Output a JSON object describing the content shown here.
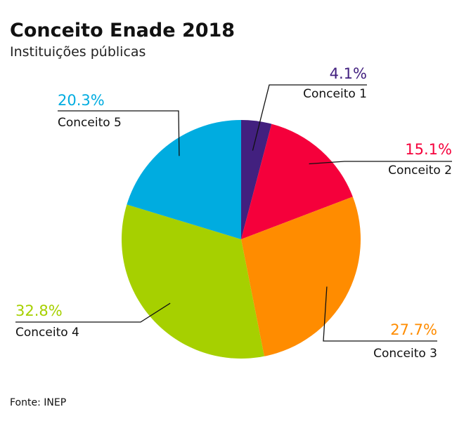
{
  "chart_data": {
    "type": "pie",
    "title": "Conceito Enade 2018",
    "subtitle": "Instituições públicas",
    "categories": [
      "Conceito 1",
      "Conceito 2",
      "Conceito 3",
      "Conceito 4",
      "Conceito 5"
    ],
    "values": [
      4.1,
      15.1,
      27.7,
      32.8,
      20.3
    ],
    "value_labels": [
      "4.1%",
      "15.1%",
      "27.7%",
      "32.8%",
      "20.3%"
    ],
    "colors": [
      "#42207f",
      "#f5003b",
      "#ff8c00",
      "#a6d000",
      "#00ace0"
    ],
    "start": "top",
    "direction": "clockwise",
    "source": "Fonte: INEP"
  }
}
